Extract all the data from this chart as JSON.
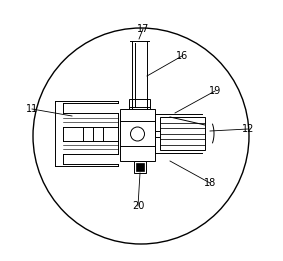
{
  "fig_width": 2.83,
  "fig_height": 2.61,
  "dpi": 100,
  "bg_color": "#ffffff",
  "line_color": "#000000",
  "lw": 0.7
}
